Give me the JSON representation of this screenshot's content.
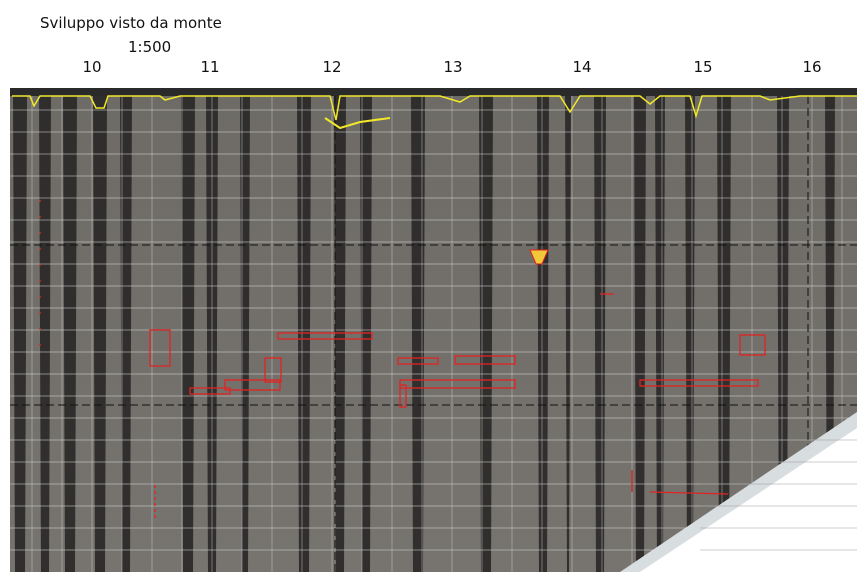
{
  "title": "Sviluppo visto da monte",
  "scale": "1:500",
  "columns": [
    "10",
    "11",
    "12",
    "13",
    "14",
    "15",
    "16"
  ]
}
